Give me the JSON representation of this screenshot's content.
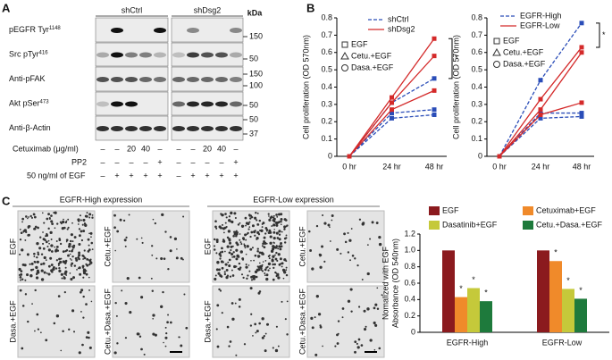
{
  "panels": {
    "a": "A",
    "b": "B",
    "c": "C"
  },
  "blot": {
    "groups": [
      "shCtrl",
      "shDsg2"
    ],
    "kda_title": "kDa",
    "rows": [
      {
        "label": "pEGFR Tyr",
        "sup": "1148"
      },
      {
        "label": "Src pTyr",
        "sup": "416"
      },
      {
        "label": "Anti-pFAK"
      },
      {
        "label": "Akt pSer",
        "sup": "473"
      },
      {
        "label": "Anti-β-Actin"
      }
    ],
    "kda_markers": [
      150,
      50,
      150,
      100,
      50,
      50,
      37
    ],
    "treatments": [
      {
        "label": "Cetuximab (μg/ml)",
        "lanes": [
          "–",
          "–",
          "20",
          "40",
          "–",
          "–",
          "–",
          "20",
          "40",
          "–"
        ]
      },
      {
        "label": "PP2",
        "lanes": [
          "–",
          "–",
          "–",
          "–",
          "+",
          "–",
          "–",
          "–",
          "–",
          "+"
        ]
      },
      {
        "label": "50 ng/ml of EGF",
        "lanes": [
          "–",
          "+",
          "+",
          "+",
          "+",
          "–",
          "+",
          "+",
          "+",
          "+"
        ]
      }
    ]
  },
  "micrographs": {
    "headers": [
      "EGFR-High expression",
      "EGFR-Low expression"
    ],
    "labels": [
      "EGF",
      "Cetu.+EGF",
      "Dasa.+EGF",
      "Cetu.+Dasa.+EGF"
    ]
  },
  "chart_data": [
    {
      "type": "line",
      "y_label": "Cell proliferation (OD 570nm)",
      "categories": [
        "0 hr",
        "24 hr",
        "48 hr"
      ],
      "ylim": [
        0,
        0.8
      ],
      "yticks": [
        0,
        0.1,
        0.2,
        0.3,
        0.4,
        0.5,
        0.6,
        0.7,
        0.8
      ],
      "groups": [
        {
          "name": "shCtrl",
          "color": "#2a4db8",
          "dashed": true
        },
        {
          "name": "shDsg2",
          "color": "#d42a2a",
          "dashed": false
        }
      ],
      "markers": [
        {
          "name": "EGF",
          "shape": "square"
        },
        {
          "name": "Cetu.+EGF",
          "shape": "triangle"
        },
        {
          "name": "Dasa.+EGF",
          "shape": "circle"
        }
      ],
      "series": [
        {
          "group": 0,
          "marker": 0,
          "values": [
            0,
            0.31,
            0.45
          ]
        },
        {
          "group": 0,
          "marker": 1,
          "values": [
            0,
            0.25,
            0.27
          ]
        },
        {
          "group": 0,
          "marker": 2,
          "values": [
            0,
            0.22,
            0.24
          ]
        },
        {
          "group": 1,
          "marker": 0,
          "values": [
            0,
            0.34,
            0.68
          ]
        },
        {
          "group": 1,
          "marker": 1,
          "values": [
            0,
            0.31,
            0.58
          ]
        },
        {
          "group": 1,
          "marker": 2,
          "values": [
            0,
            0.27,
            0.38
          ]
        }
      ],
      "annotation": "*"
    },
    {
      "type": "line",
      "y_label": "Cell proliferation (OD 570nm)",
      "categories": [
        "0 hr",
        "24 hr",
        "48 hr"
      ],
      "ylim": [
        0,
        0.8
      ],
      "yticks": [
        0,
        0.1,
        0.2,
        0.3,
        0.4,
        0.5,
        0.6,
        0.7,
        0.8
      ],
      "groups": [
        {
          "name": "EGFR-High",
          "color": "#2a4db8",
          "dashed": true
        },
        {
          "name": "EGFR-Low",
          "color": "#d42a2a",
          "dashed": false
        }
      ],
      "markers": [
        {
          "name": "EGF",
          "shape": "square"
        },
        {
          "name": "Cetu.+EGF",
          "shape": "triangle"
        },
        {
          "name": "Dasa.+EGF",
          "shape": "circle"
        }
      ],
      "series": [
        {
          "group": 0,
          "marker": 0,
          "values": [
            0,
            0.44,
            0.77
          ]
        },
        {
          "group": 0,
          "marker": 1,
          "values": [
            0,
            0.25,
            0.25
          ]
        },
        {
          "group": 0,
          "marker": 2,
          "values": [
            0,
            0.22,
            0.23
          ]
        },
        {
          "group": 1,
          "marker": 0,
          "values": [
            0,
            0.33,
            0.63
          ]
        },
        {
          "group": 1,
          "marker": 1,
          "values": [
            0,
            0.27,
            0.6
          ]
        },
        {
          "group": 1,
          "marker": 2,
          "values": [
            0,
            0.24,
            0.31
          ]
        }
      ],
      "annotation": "*"
    },
    {
      "type": "bar",
      "y_label": [
        "Nomalized with EGF",
        "Absorbance (OD 540nm)"
      ],
      "categories": [
        "EGFR-High",
        "EGFR-Low"
      ],
      "ylim": [
        0,
        1.2
      ],
      "yticks": [
        0,
        0.2,
        0.4,
        0.6,
        0.8,
        {
          "value": 1,
          "label": "1.0"
        },
        1.2
      ],
      "series": [
        {
          "name": "EGF",
          "color": "#8b1a1e",
          "values": [
            1,
            1
          ]
        },
        {
          "name": "Cetuximab+EGF",
          "color": "#f08a2a",
          "values": [
            0.43,
            0.87
          ],
          "annotation": "*"
        },
        {
          "name": "Dasatinib+EGF",
          "color": "#c5c93a",
          "values": [
            0.54,
            0.53
          ],
          "annotation": "*"
        },
        {
          "name": "Cetu.+Dasa.+EGF",
          "color": "#1e7a3c",
          "values": [
            0.38,
            0.41
          ],
          "annotation": "*"
        }
      ]
    }
  ]
}
